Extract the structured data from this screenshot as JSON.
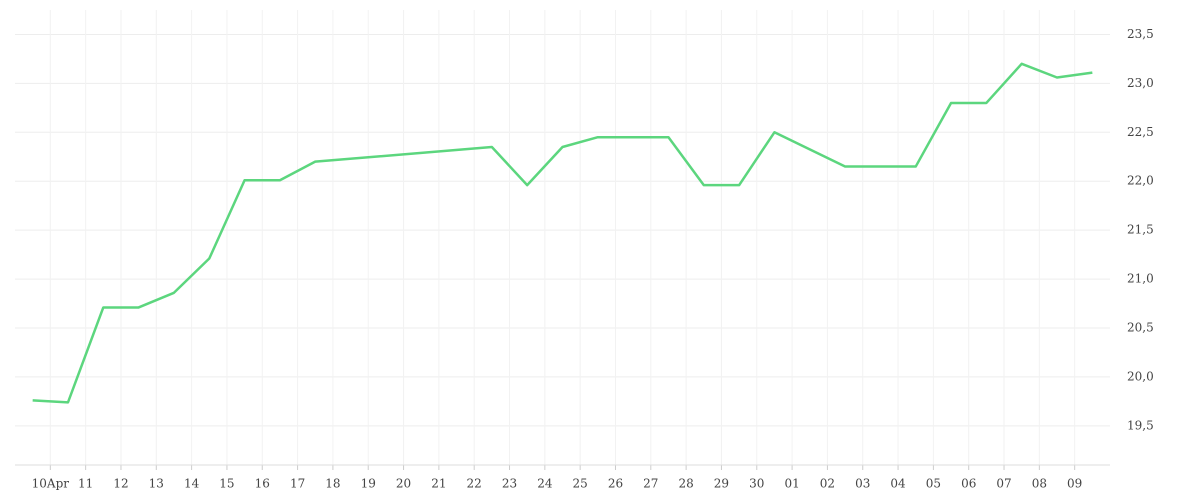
{
  "chart_data": {
    "type": "line",
    "x": [
      0,
      1,
      2,
      3,
      4,
      5,
      6,
      7,
      8,
      13,
      14,
      15,
      16,
      17,
      18,
      19,
      20,
      21,
      23,
      24,
      25,
      26,
      27,
      28,
      29,
      30
    ],
    "series": [
      {
        "color": "#5cd67e",
        "values": [
          19.76,
          19.74,
          20.71,
          20.71,
          20.86,
          21.21,
          22.01,
          22.01,
          22.2,
          22.35,
          21.96,
          22.35,
          22.45,
          22.45,
          22.45,
          21.96,
          21.96,
          22.5,
          22.15,
          22.15,
          22.15,
          22.8,
          22.8,
          23.2,
          23.06,
          23.11
        ]
      }
    ],
    "xlim": [
      -0.5,
      30.5
    ],
    "xticks": [
      {
        "value": 0.5,
        "label": "10Apr"
      },
      {
        "value": 1.5,
        "label": "11"
      },
      {
        "value": 2.5,
        "label": "12"
      },
      {
        "value": 3.5,
        "label": "13"
      },
      {
        "value": 4.5,
        "label": "14"
      },
      {
        "value": 5.5,
        "label": "15"
      },
      {
        "value": 6.5,
        "label": "16"
      },
      {
        "value": 7.5,
        "label": "17"
      },
      {
        "value": 8.5,
        "label": "18"
      },
      {
        "value": 9.5,
        "label": "19"
      },
      {
        "value": 10.5,
        "label": "20"
      },
      {
        "value": 11.5,
        "label": "21"
      },
      {
        "value": 12.5,
        "label": "22"
      },
      {
        "value": 13.5,
        "label": "23"
      },
      {
        "value": 14.5,
        "label": "24"
      },
      {
        "value": 15.5,
        "label": "25"
      },
      {
        "value": 16.5,
        "label": "26"
      },
      {
        "value": 17.5,
        "label": "27"
      },
      {
        "value": 18.5,
        "label": "28"
      },
      {
        "value": 19.5,
        "label": "29"
      },
      {
        "value": 20.5,
        "label": "30"
      },
      {
        "value": 21.5,
        "label": "01"
      },
      {
        "value": 22.5,
        "label": "02"
      },
      {
        "value": 23.5,
        "label": "03"
      },
      {
        "value": 24.5,
        "label": "04"
      },
      {
        "value": 25.5,
        "label": "05"
      },
      {
        "value": 26.5,
        "label": "06"
      },
      {
        "value": 27.5,
        "label": "07"
      },
      {
        "value": 28.5,
        "label": "08"
      },
      {
        "value": 29.5,
        "label": "09"
      }
    ],
    "ylim": [
      19.1,
      23.75
    ],
    "yticks": [
      {
        "value": 19.5,
        "label": "19,5"
      },
      {
        "value": 20,
        "label": "20,0"
      },
      {
        "value": 20.5,
        "label": "20,5"
      },
      {
        "value": 21,
        "label": "21,0"
      },
      {
        "value": 21.5,
        "label": "21,5"
      },
      {
        "value": 22,
        "label": "22,0"
      },
      {
        "value": 22.5,
        "label": "22,5"
      },
      {
        "value": 23,
        "label": "23,0"
      },
      {
        "value": 23.5,
        "label": "23,5"
      }
    ],
    "grid": true
  }
}
